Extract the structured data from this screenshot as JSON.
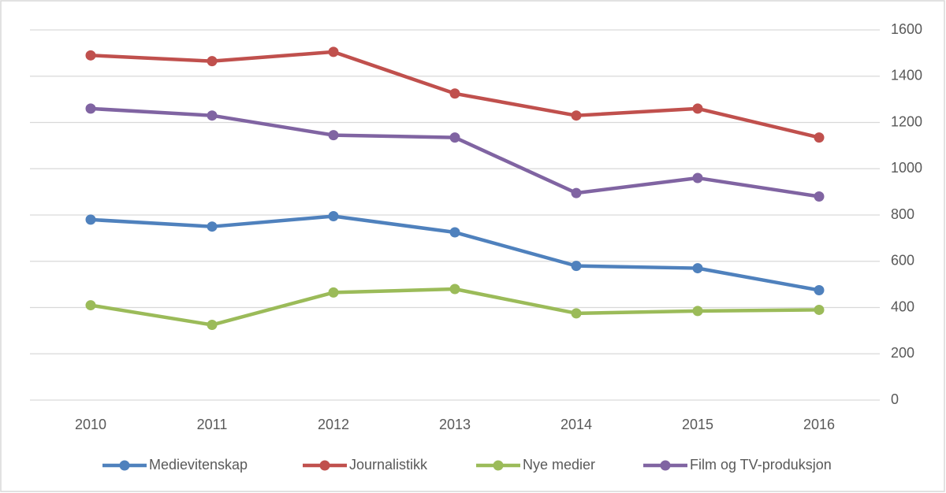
{
  "chart_data": {
    "type": "line",
    "categories": [
      "2010",
      "2011",
      "2012",
      "2013",
      "2014",
      "2015",
      "2016"
    ],
    "series": [
      {
        "name": "Medievitenskap",
        "color": "#4f81bd",
        "values": [
          780,
          750,
          795,
          725,
          580,
          570,
          475
        ]
      },
      {
        "name": "Journalistikk",
        "color": "#c0504d",
        "values": [
          1490,
          1465,
          1505,
          1325,
          1230,
          1260,
          1135
        ]
      },
      {
        "name": "Nye medier",
        "color": "#9bbb59",
        "values": [
          410,
          325,
          465,
          480,
          375,
          385,
          390
        ]
      },
      {
        "name": "Film og TV-produksjon",
        "color": "#8064a2",
        "values": [
          1260,
          1230,
          1145,
          1135,
          895,
          960,
          880
        ]
      }
    ],
    "ylim": [
      0,
      1600
    ],
    "yticks": [
      0,
      200,
      400,
      600,
      800,
      1000,
      1200,
      1400,
      1600
    ],
    "grid": true,
    "legend": "bottom"
  }
}
